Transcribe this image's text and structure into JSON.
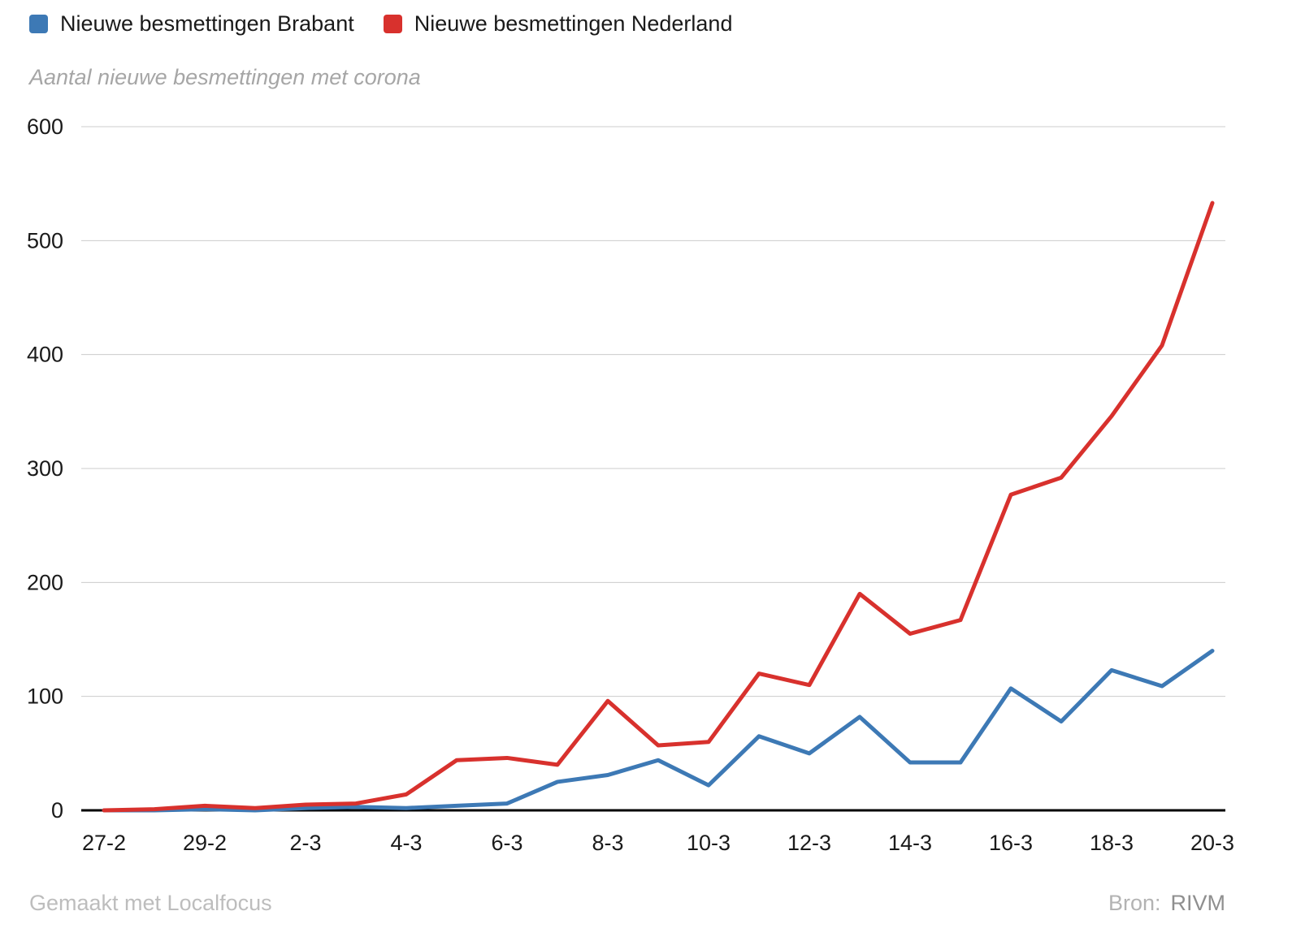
{
  "footer": {
    "credit": "Gemaakt met Localfocus",
    "source_label": "Bron:",
    "source_value": "RIVM"
  },
  "chart_data": {
    "type": "line",
    "title": "Aantal nieuwe besmettingen met corona",
    "xlabel": "",
    "ylabel": "",
    "x": [
      "27-2",
      "28-2",
      "29-2",
      "1-3",
      "2-3",
      "3-3",
      "4-3",
      "5-3",
      "6-3",
      "7-3",
      "8-3",
      "9-3",
      "10-3",
      "11-3",
      "12-3",
      "13-3",
      "14-3",
      "15-3",
      "16-3",
      "17-3",
      "18-3",
      "19-3",
      "20-3"
    ],
    "x_tick_step": 2,
    "x_tick_labels": [
      "27-2",
      "29-2",
      "2-3",
      "4-3",
      "6-3",
      "8-3",
      "10-3",
      "12-3",
      "14-3",
      "16-3",
      "18-3",
      "20-3"
    ],
    "ylim": [
      0,
      600
    ],
    "yticks": [
      0,
      100,
      200,
      300,
      400,
      500,
      600
    ],
    "grid": true,
    "legend_position": "top-left",
    "series": [
      {
        "name": "Nieuwe besmettingen Brabant",
        "color": "#3d79b5",
        "values": [
          0,
          0,
          1,
          0,
          2,
          3,
          2,
          4,
          6,
          25,
          31,
          44,
          22,
          65,
          50,
          82,
          42,
          42,
          107,
          78,
          123,
          109,
          140
        ]
      },
      {
        "name": "Nieuwe besmettingen Nederland",
        "color": "#d8312d",
        "values": [
          0,
          1,
          4,
          2,
          5,
          6,
          14,
          44,
          46,
          40,
          96,
          57,
          60,
          120,
          110,
          190,
          155,
          167,
          277,
          292,
          346,
          408,
          533
        ]
      }
    ]
  }
}
